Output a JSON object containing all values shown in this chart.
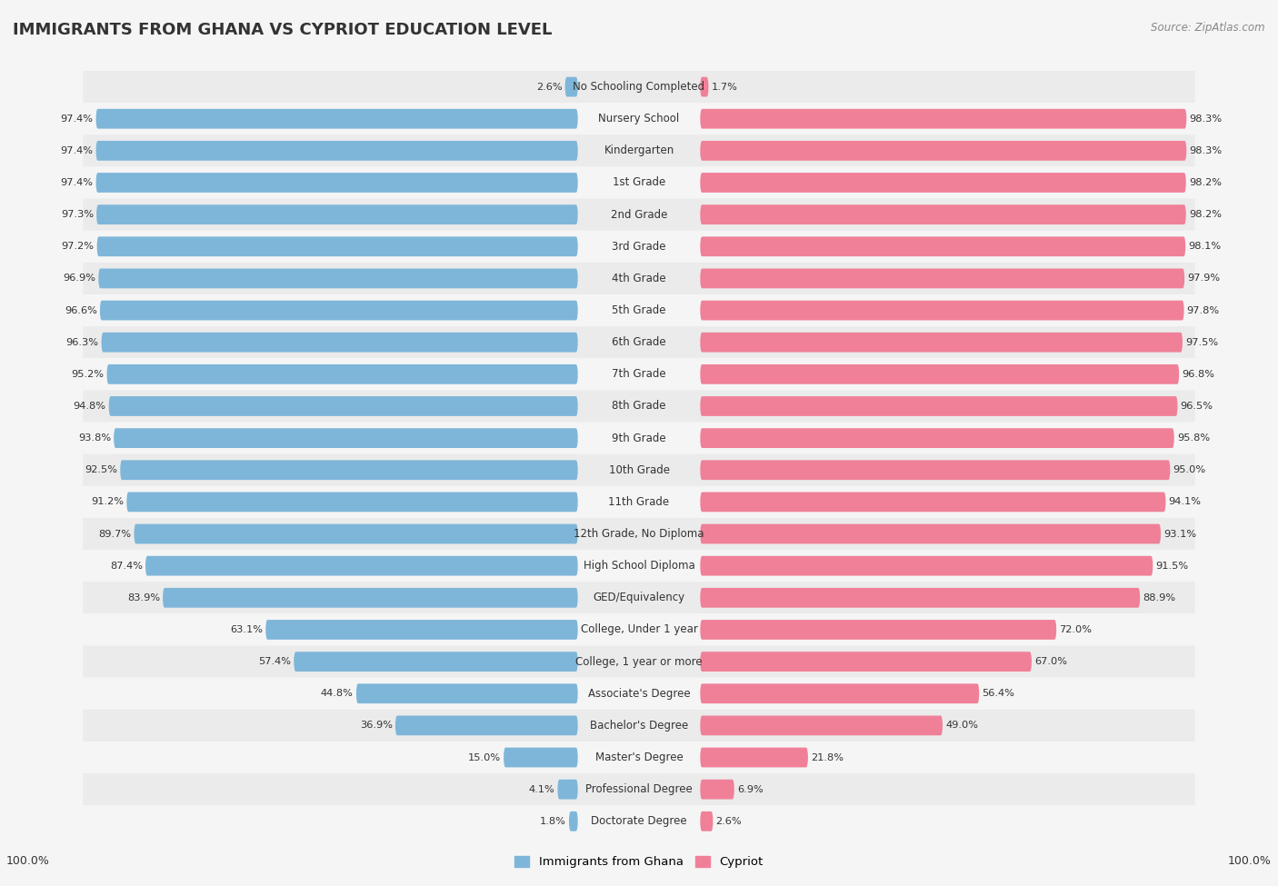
{
  "title": "IMMIGRANTS FROM GHANA VS CYPRIOT EDUCATION LEVEL",
  "source": "Source: ZipAtlas.com",
  "categories": [
    "No Schooling Completed",
    "Nursery School",
    "Kindergarten",
    "1st Grade",
    "2nd Grade",
    "3rd Grade",
    "4th Grade",
    "5th Grade",
    "6th Grade",
    "7th Grade",
    "8th Grade",
    "9th Grade",
    "10th Grade",
    "11th Grade",
    "12th Grade, No Diploma",
    "High School Diploma",
    "GED/Equivalency",
    "College, Under 1 year",
    "College, 1 year or more",
    "Associate's Degree",
    "Bachelor's Degree",
    "Master's Degree",
    "Professional Degree",
    "Doctorate Degree"
  ],
  "ghana_values": [
    2.6,
    97.4,
    97.4,
    97.4,
    97.3,
    97.2,
    96.9,
    96.6,
    96.3,
    95.2,
    94.8,
    93.8,
    92.5,
    91.2,
    89.7,
    87.4,
    83.9,
    63.1,
    57.4,
    44.8,
    36.9,
    15.0,
    4.1,
    1.8
  ],
  "cypriot_values": [
    1.7,
    98.3,
    98.3,
    98.2,
    98.2,
    98.1,
    97.9,
    97.8,
    97.5,
    96.8,
    96.5,
    95.8,
    95.0,
    94.1,
    93.1,
    91.5,
    88.9,
    72.0,
    67.0,
    56.4,
    49.0,
    21.8,
    6.9,
    2.6
  ],
  "ghana_color": "#7EB6D9",
  "cypriot_color": "#F08098",
  "background_color": "#f5f5f5",
  "legend_ghana": "Immigrants from Ghana",
  "legend_cypriot": "Cypriot",
  "title_fontsize": 13,
  "label_fontsize": 8.5,
  "value_fontsize": 8.2
}
